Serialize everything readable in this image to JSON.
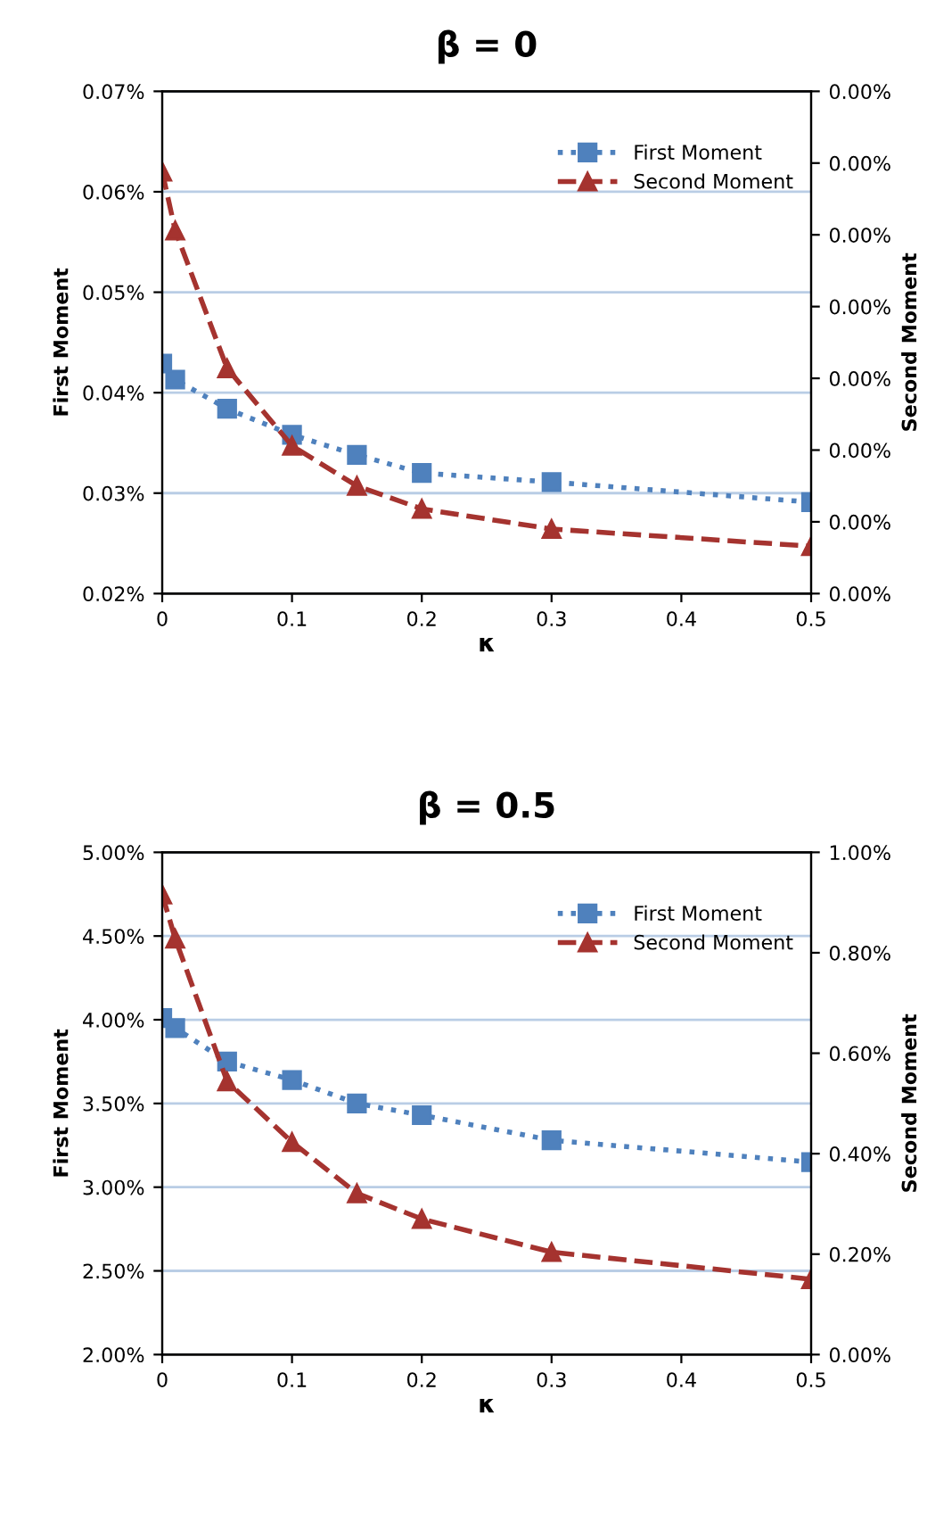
{
  "chart_data": [
    {
      "type": "line",
      "title": "β = 0",
      "xlabel": "κ",
      "ylabel": "First Moment",
      "y2label": "Second Moment",
      "grid": "y",
      "legend": "top right",
      "x": [
        0,
        0.01,
        0.05,
        0.1,
        0.15,
        0.2,
        0.3,
        0.5
      ],
      "xlim": [
        0,
        0.5
      ],
      "xticks": [
        0,
        0.1,
        0.2,
        0.3,
        0.4,
        0.5
      ],
      "ylim": [
        0.02,
        0.07
      ],
      "yticks": [
        {
          "value": 0.02,
          "label": "0.02%"
        },
        {
          "value": 0.03,
          "label": "0.03%"
        },
        {
          "value": 0.04,
          "label": "0.04%"
        },
        {
          "value": 0.05,
          "label": "0.05%"
        },
        {
          "value": 0.06,
          "label": "0.06%"
        },
        {
          "value": 0.07,
          "label": "0.07%"
        }
      ],
      "y2lim": [
        0,
        0.0035
      ],
      "y2ticks": [
        {
          "value": 0,
          "label": "0.00%"
        },
        {
          "value": 0.0005,
          "label": "0.00%"
        },
        {
          "value": 0.001,
          "label": "0.00%"
        },
        {
          "value": 0.0015,
          "label": "0.00%"
        },
        {
          "value": 0.002,
          "label": "0.00%"
        },
        {
          "value": 0.0025,
          "label": "0.00%"
        },
        {
          "value": 0.003,
          "label": "0.00%"
        },
        {
          "value": 0.0035,
          "label": "0.00%"
        }
      ],
      "series": [
        {
          "name": "First Moment",
          "color": "#4f81bd",
          "marker": "square",
          "line_style": "dotted",
          "values": [
            0.0429,
            0.0413,
            0.0384,
            0.0358,
            0.0338,
            0.032,
            0.0311,
            0.0291
          ]
        },
        {
          "name": "Second Moment",
          "color": "#a5332f",
          "marker": "triangle",
          "line_style": "dashed",
          "axis": "y2",
          "values": [
            0.00294,
            0.00253,
            0.00157,
            0.00103,
            0.00075,
            0.00059,
            0.00045,
            0.00033
          ]
        }
      ]
    },
    {
      "type": "line",
      "title": "β = 0.5",
      "xlabel": "κ",
      "ylabel": "First Moment",
      "y2label": "Second Moment",
      "grid": "y",
      "legend": "top right",
      "x": [
        0,
        0.01,
        0.05,
        0.1,
        0.15,
        0.2,
        0.3,
        0.5
      ],
      "xlim": [
        0,
        0.5
      ],
      "xticks": [
        0,
        0.1,
        0.2,
        0.3,
        0.4,
        0.5
      ],
      "ylim": [
        2.0,
        5.0
      ],
      "yticks": [
        {
          "value": 2.0,
          "label": "2.00%"
        },
        {
          "value": 2.5,
          "label": "2.50%"
        },
        {
          "value": 3.0,
          "label": "3.00%"
        },
        {
          "value": 3.5,
          "label": "3.50%"
        },
        {
          "value": 4.0,
          "label": "4.00%"
        },
        {
          "value": 4.5,
          "label": "4.50%"
        },
        {
          "value": 5.0,
          "label": "5.00%"
        }
      ],
      "y2lim": [
        0,
        1.0
      ],
      "y2ticks": [
        {
          "value": 0,
          "label": "0.00%"
        },
        {
          "value": 0.2,
          "label": "0.20%"
        },
        {
          "value": 0.4,
          "label": "0.40%"
        },
        {
          "value": 0.6,
          "label": "0.60%"
        },
        {
          "value": 0.8,
          "label": "0.80%"
        },
        {
          "value": 1.0,
          "label": "1.00%"
        }
      ],
      "series": [
        {
          "name": "First Moment",
          "color": "#4f81bd",
          "marker": "square",
          "line_style": "dotted",
          "values": [
            4.01,
            3.95,
            3.75,
            3.64,
            3.5,
            3.43,
            3.28,
            3.15
          ]
        },
        {
          "name": "Second Moment",
          "color": "#a5332f",
          "marker": "triangle",
          "line_style": "dashed",
          "axis": "y2",
          "values": [
            0.916,
            0.828,
            0.544,
            0.423,
            0.321,
            0.27,
            0.204,
            0.15
          ]
        }
      ]
    }
  ]
}
